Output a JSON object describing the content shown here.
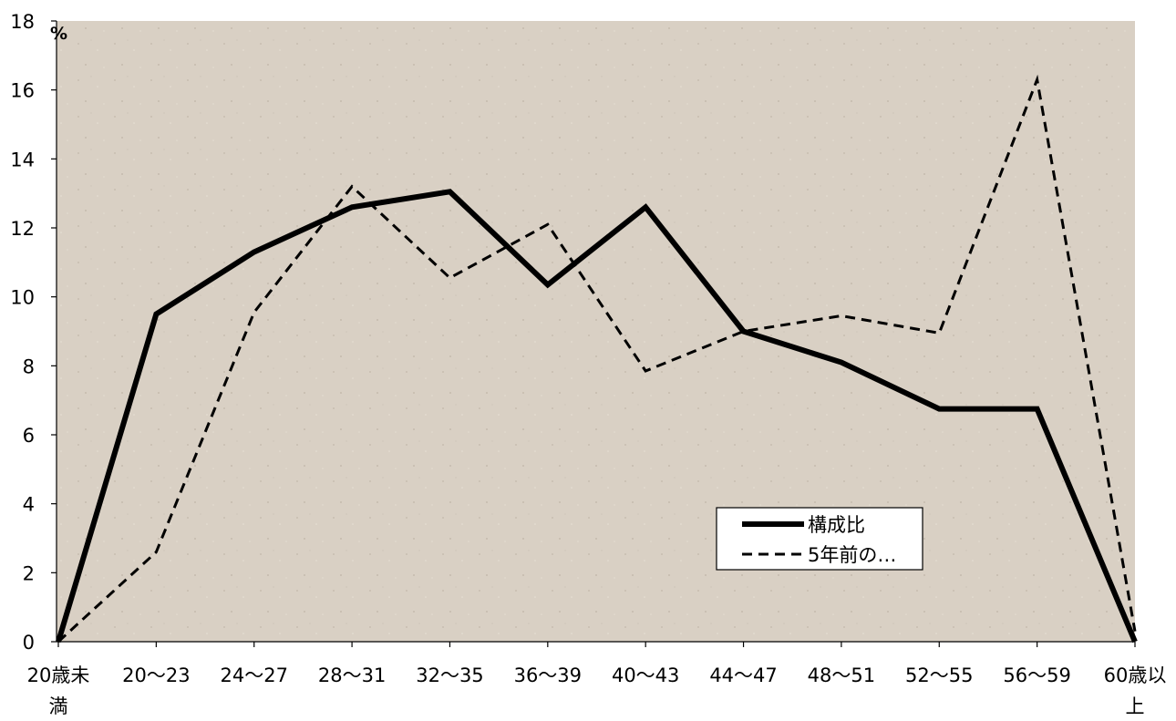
{
  "chart_data": {
    "type": "line",
    "title": "",
    "xlabel": "",
    "ylabel": "",
    "y_unit": "%",
    "ylim": [
      0,
      18
    ],
    "y_ticks": [
      0,
      2,
      4,
      6,
      8,
      10,
      12,
      14,
      16,
      18
    ],
    "grid": false,
    "legend_position": "bottom-right",
    "categories": [
      [
        "20歳未",
        "満"
      ],
      [
        "20～23"
      ],
      [
        "24～27"
      ],
      [
        "28～31"
      ],
      [
        "32～35"
      ],
      [
        "36～39"
      ],
      [
        "40～43"
      ],
      [
        "44～47"
      ],
      [
        "48～51"
      ],
      [
        "52～55"
      ],
      [
        "56～59"
      ],
      [
        "60歳以",
        "上"
      ]
    ],
    "series": [
      {
        "name": "構成比",
        "style": "solid",
        "color": "#000000",
        "values": [
          0,
          9.5,
          11.3,
          12.6,
          13.05,
          10.35,
          12.6,
          9.0,
          8.1,
          6.75,
          6.75,
          0
        ]
      },
      {
        "name": "5年前の…",
        "style": "dashed",
        "color": "#000000",
        "values": [
          0,
          2.6,
          9.55,
          13.2,
          10.55,
          12.1,
          7.85,
          9.0,
          9.45,
          8.95,
          16.3,
          0.3
        ]
      }
    ],
    "background_color": "#d9d0c4"
  }
}
